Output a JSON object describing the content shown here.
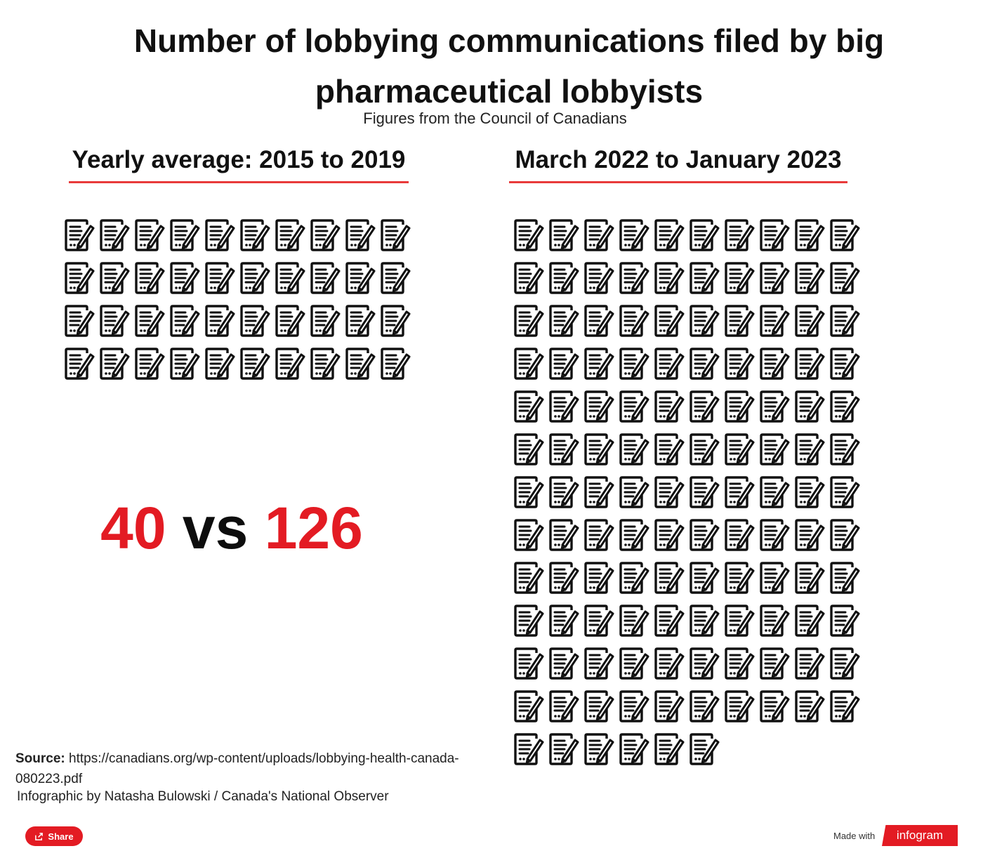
{
  "header": {
    "title": "Number of lobbying communications filed by big pharmaceutical lobbyists",
    "subtitle": "Figures from the Council of Canadians"
  },
  "chart_data": {
    "type": "pictogram",
    "icon": "document-icon",
    "icons_per_row": 10,
    "series": [
      {
        "name": "Yearly average: 2015 to 2019",
        "value": 40
      },
      {
        "name": "March 2022 to January 2023",
        "value": 126
      }
    ]
  },
  "comparison": {
    "left_value": "40",
    "vs_label": "vs",
    "right_value": "126"
  },
  "footer": {
    "source_label": "Source:",
    "source_text": "https://canadians.org/wp-content/uploads/lobbying-health-canada-080223.pdf",
    "credit": "Infographic by Natasha Bulowski / Canada's National Observer",
    "share_label": "Share",
    "made_with": "Made with",
    "brand": "infogram"
  },
  "colors": {
    "accent": "#e31b23",
    "underline": "#e83a3a",
    "text": "#111111"
  }
}
